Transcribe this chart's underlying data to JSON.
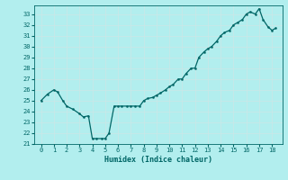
{
  "x_data": [
    0,
    0.5,
    1,
    1.3,
    1.7,
    2,
    2.5,
    3,
    3.3,
    3.7,
    4,
    4.3,
    4.7,
    5,
    5.3,
    5.7,
    6,
    6.3,
    6.7,
    7,
    7.3,
    7.7,
    8,
    8.3,
    8.7,
    9,
    9.3,
    9.7,
    10,
    10.3,
    10.7,
    11,
    11.3,
    11.7,
    12,
    12.3,
    12.7,
    13,
    13.3,
    13.7,
    14,
    14.3,
    14.7,
    15,
    15.3,
    15.7,
    16,
    16.3,
    16.7,
    17,
    17.3,
    17.7,
    18,
    18.3
  ],
  "y_data": [
    25,
    25.6,
    26,
    25.8,
    25,
    24.5,
    24.2,
    23.8,
    23.5,
    23.6,
    21.5,
    21.5,
    21.5,
    21.5,
    22,
    24.5,
    24.5,
    24.5,
    24.5,
    24.5,
    24.5,
    24.5,
    25,
    25.2,
    25.3,
    25.5,
    25.7,
    26,
    26.3,
    26.5,
    27,
    27,
    27.5,
    28,
    28,
    29,
    29.5,
    29.8,
    30,
    30.5,
    31,
    31.3,
    31.5,
    32,
    32.2,
    32.5,
    33,
    33.2,
    33,
    33.5,
    32.5,
    31.8,
    31.5,
    31.7
  ],
  "xlabel": "Humidex (Indice chaleur)",
  "xlim": [
    -0.5,
    18.8
  ],
  "ylim": [
    21,
    33.8
  ],
  "xticks": [
    0,
    1,
    2,
    3,
    4,
    5,
    6,
    7,
    8,
    9,
    10,
    11,
    12,
    13,
    14,
    15,
    16,
    17,
    18
  ],
  "yticks": [
    21,
    22,
    23,
    24,
    25,
    26,
    27,
    28,
    29,
    30,
    31,
    32,
    33
  ],
  "line_color": "#006666",
  "marker_color": "#006666",
  "bg_color": "#b2eeee",
  "grid_color": "#c8e8e8",
  "tick_label_color": "#006666",
  "axis_label_color": "#006666",
  "font_family": "monospace",
  "xlabel_fontsize": 6.0,
  "tick_fontsize": 5.0,
  "linewidth": 0.9,
  "markersize": 1.5
}
